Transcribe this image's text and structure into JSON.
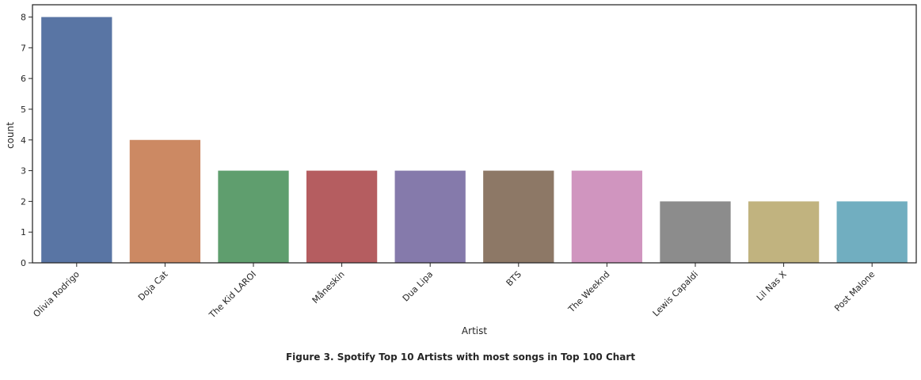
{
  "chart_data": {
    "type": "bar",
    "categories": [
      "Olivia Rodrigo",
      "Doja Cat",
      "The Kid LAROI",
      "Måneskin",
      "Dua Lipa",
      "BTS",
      "The Weeknd",
      "Lewis Capaldi",
      "Lil Nas X",
      "Post Malone"
    ],
    "values": [
      8,
      4,
      3,
      3,
      3,
      3,
      3,
      2,
      2,
      2
    ],
    "colors": [
      "#5975a4",
      "#cc8963",
      "#5f9e6e",
      "#b55d60",
      "#857aab",
      "#8d7866",
      "#d095bf",
      "#8c8c8c",
      "#c1b37f",
      "#71aec0"
    ],
    "xlabel": "Artist",
    "ylabel": "count",
    "ylim": [
      0,
      8.4
    ],
    "yticks": [
      0,
      1,
      2,
      3,
      4,
      5,
      6,
      7,
      8
    ],
    "grid": false
  },
  "caption": "Figure 3. Spotify Top 10 Artists with most songs in Top 100 Chart"
}
